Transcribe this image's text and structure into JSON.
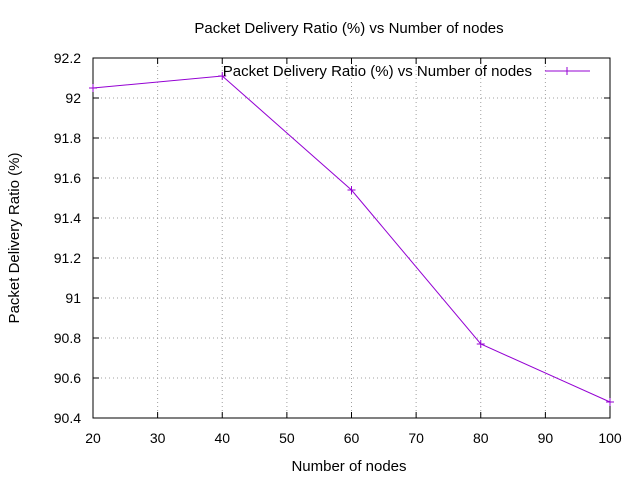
{
  "chart_data": {
    "type": "line",
    "title": "Packet Delivery Ratio (%) vs Number of nodes",
    "xlabel": "Number of nodes",
    "ylabel": "Packet Delivery Ratio (%)",
    "xlim": [
      20,
      100
    ],
    "ylim": [
      90.4,
      92.2
    ],
    "xticks": [
      "20",
      "30",
      "40",
      "50",
      "60",
      "70",
      "80",
      "90",
      "100"
    ],
    "yticks": [
      "90.4",
      "90.6",
      "90.8",
      "91",
      "91.2",
      "91.4",
      "91.6",
      "91.8",
      "92",
      "92.2"
    ],
    "grid": true,
    "legend_position": "top-right",
    "series": [
      {
        "name": "Packet Delivery Ratio (%) vs Number of nodes",
        "color": "#9400d3",
        "marker": "plus",
        "x": [
          20,
          40,
          60,
          80,
          100
        ],
        "y": [
          92.05,
          92.11,
          91.54,
          90.77,
          90.48
        ]
      }
    ]
  }
}
